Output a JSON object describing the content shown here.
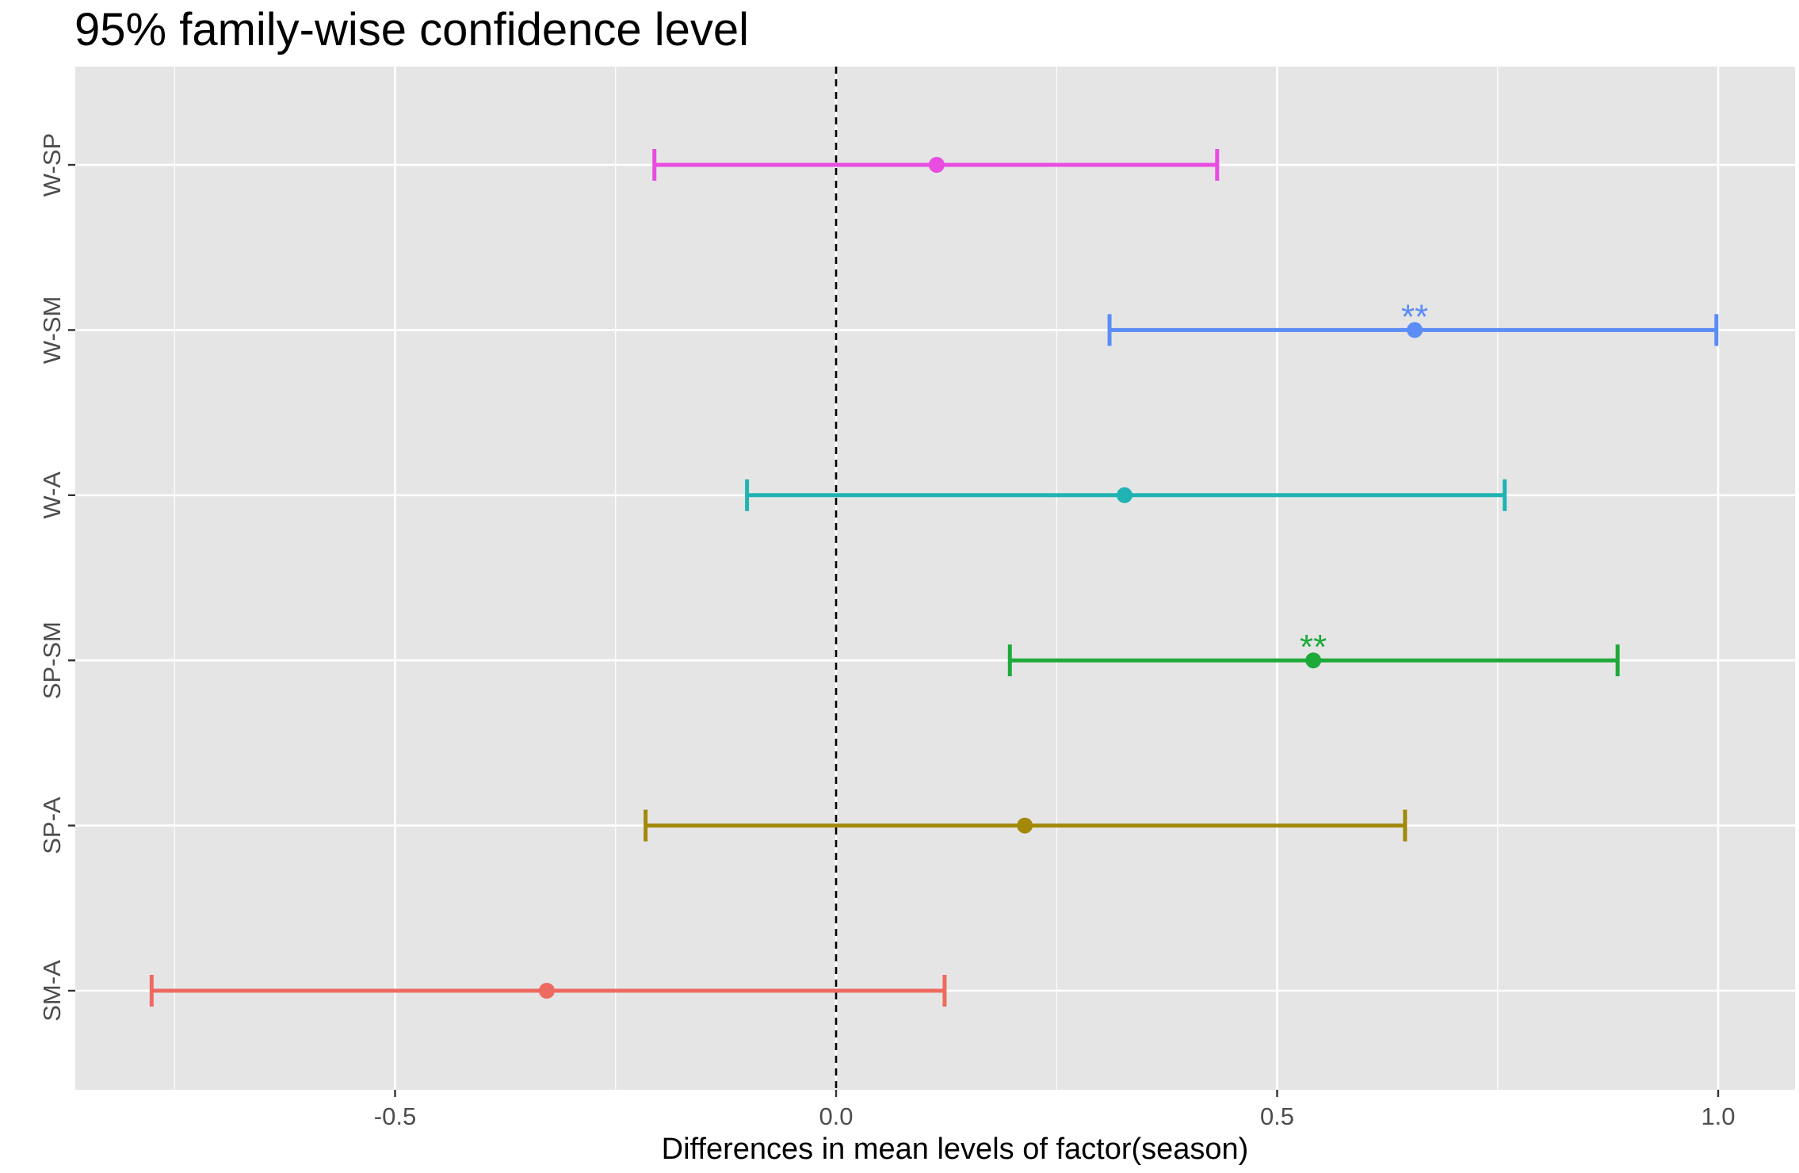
{
  "chart_data": {
    "type": "errorbar",
    "title": "95% family-wise confidence level",
    "xlabel": "Differences in mean levels of factor(season)",
    "ylabel": "",
    "xlim": [
      -0.85,
      1.1
    ],
    "x_ticks": [
      -0.5,
      0.0,
      0.5,
      1.0
    ],
    "x_tick_labels": [
      "-0.5",
      "0.0",
      "0.5",
      "1.0"
    ],
    "reference_line": {
      "x": 0,
      "style": "dashed"
    },
    "grid": true,
    "background": "#E5E5E5",
    "categories": [
      "W-SP",
      "W-SM",
      "W-A",
      "SP-SM",
      "SP-A",
      "SM-A"
    ],
    "series": [
      {
        "category": "W-SP",
        "estimate": 0.114,
        "lower": -0.206,
        "upper": 0.432,
        "significance": "",
        "color": "#E94CE0"
      },
      {
        "category": "W-SM",
        "estimate": 0.656,
        "lower": 0.31,
        "upper": 0.998,
        "significance": "**",
        "color": "#5C8DF6"
      },
      {
        "category": "W-A",
        "estimate": 0.327,
        "lower": -0.101,
        "upper": 0.758,
        "significance": "",
        "color": "#20B3B3"
      },
      {
        "category": "SP-SM",
        "estimate": 0.541,
        "lower": 0.197,
        "upper": 0.886,
        "significance": "**",
        "color": "#1EAA3A"
      },
      {
        "category": "SP-A",
        "estimate": 0.214,
        "lower": -0.216,
        "upper": 0.645,
        "significance": "",
        "color": "#A3890A"
      },
      {
        "category": "SM-A",
        "estimate": -0.328,
        "lower": -0.776,
        "upper": 0.123,
        "significance": "",
        "color": "#EE6A60"
      }
    ]
  }
}
